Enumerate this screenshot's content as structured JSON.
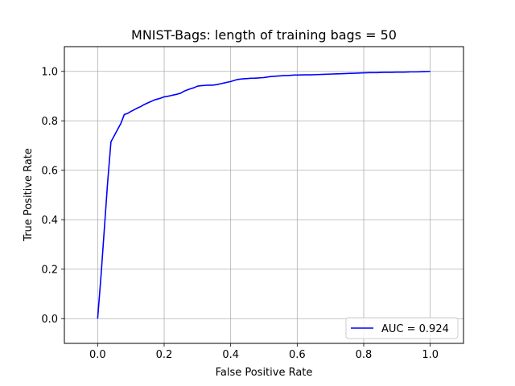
{
  "chart_data": {
    "type": "line",
    "title": "MNIST-Bags: length of training bags = 50",
    "xlabel": "False Positive Rate",
    "ylabel": "True Positive Rate",
    "xlim": [
      -0.1,
      1.1
    ],
    "ylim": [
      -0.1,
      1.1
    ],
    "xticks": [
      0.0,
      0.2,
      0.4,
      0.6,
      0.8,
      1.0
    ],
    "xtick_labels": [
      "0.0",
      "0.2",
      "0.4",
      "0.6",
      "0.8",
      "1.0"
    ],
    "yticks": [
      0.0,
      0.2,
      0.4,
      0.6,
      0.8,
      1.0
    ],
    "ytick_labels": [
      "0.0",
      "0.2",
      "0.4",
      "0.6",
      "0.8",
      "1.0"
    ],
    "grid": true,
    "legend_position": "lower-right",
    "series": [
      {
        "name": "AUC = 0.924",
        "color": "#0000ff",
        "x": [
          0.0,
          0.01,
          0.02,
          0.03,
          0.04,
          0.05,
          0.06,
          0.07,
          0.08,
          0.09,
          0.1,
          0.11,
          0.12,
          0.13,
          0.14,
          0.15,
          0.16,
          0.17,
          0.18,
          0.19,
          0.2,
          0.21,
          0.22,
          0.23,
          0.24,
          0.25,
          0.26,
          0.27,
          0.28,
          0.29,
          0.3,
          0.31,
          0.32,
          0.33,
          0.34,
          0.35,
          0.36,
          0.37,
          0.38,
          0.39,
          0.4,
          0.41,
          0.42,
          0.43,
          0.44,
          0.45,
          0.46,
          0.47,
          0.48,
          0.49,
          0.5,
          0.51,
          0.52,
          0.53,
          0.54,
          0.55,
          0.56,
          0.57,
          0.58,
          0.59,
          0.6,
          0.62,
          0.64,
          0.66,
          0.68,
          0.7,
          0.72,
          0.74,
          0.76,
          0.78,
          0.8,
          0.82,
          0.84,
          0.86,
          0.88,
          0.9,
          0.92,
          0.94,
          0.96,
          0.98,
          1.0
        ],
        "y": [
          0.0,
          0.17,
          0.36,
          0.55,
          0.715,
          0.74,
          0.765,
          0.79,
          0.825,
          0.83,
          0.838,
          0.845,
          0.852,
          0.858,
          0.866,
          0.872,
          0.878,
          0.884,
          0.888,
          0.892,
          0.897,
          0.899,
          0.902,
          0.905,
          0.908,
          0.912,
          0.92,
          0.925,
          0.93,
          0.934,
          0.94,
          0.942,
          0.943,
          0.944,
          0.944,
          0.945,
          0.947,
          0.95,
          0.953,
          0.956,
          0.959,
          0.963,
          0.967,
          0.969,
          0.97,
          0.971,
          0.972,
          0.972,
          0.973,
          0.974,
          0.975,
          0.977,
          0.979,
          0.98,
          0.981,
          0.982,
          0.983,
          0.983,
          0.984,
          0.985,
          0.985,
          0.986,
          0.986,
          0.987,
          0.988,
          0.989,
          0.99,
          0.991,
          0.992,
          0.993,
          0.994,
          0.995,
          0.995,
          0.996,
          0.996,
          0.997,
          0.997,
          0.998,
          0.998,
          0.999,
          1.0
        ]
      }
    ]
  }
}
